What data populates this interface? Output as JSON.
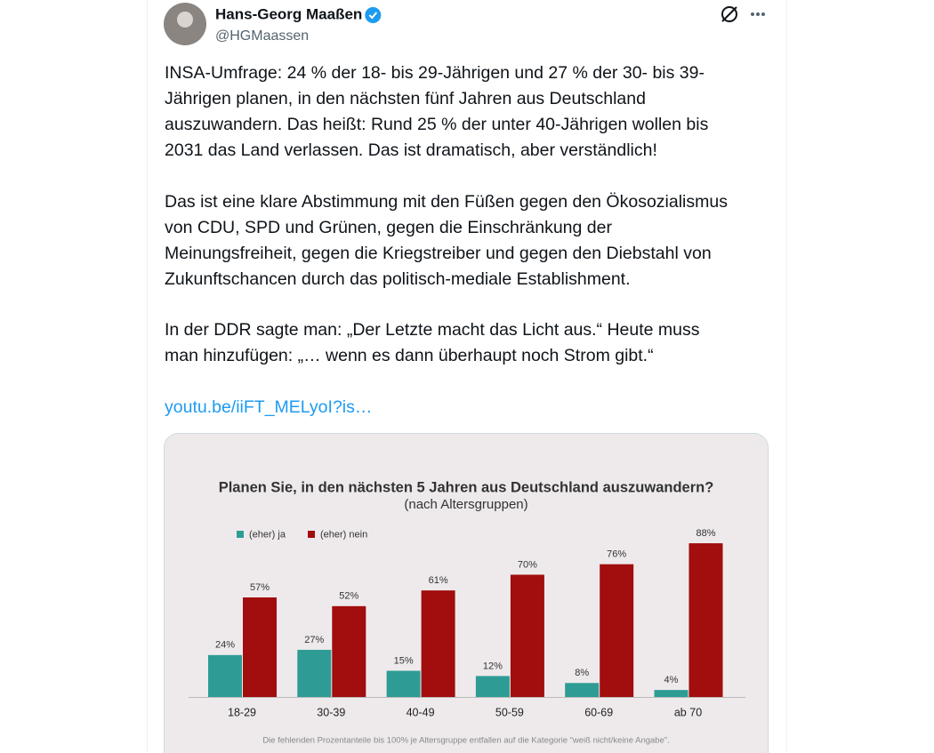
{
  "tweet": {
    "name": "Hans-Georg Maaßen",
    "handle": "@HGMaassen",
    "paragraphs": [
      [
        "INSA-Umfrage: 24 % der 18- bis 29-Jährigen und 27 % der 30- bis 39-",
        "Jährigen planen, in den nächsten fünf Jahren aus Deutschland",
        "auszuwandern. Das heißt: Rund 25 % der unter 40-Jährigen wollen bis",
        "2031 das Land verlassen. Das ist dramatisch, aber verständlich!"
      ],
      [
        "Das ist eine klare Abstimmung mit den Füßen gegen den Ökosozialismus",
        "von CDU, SPD und Grünen, gegen die Einschränkung der",
        "Meinungsfreiheit, gegen die Kriegstreiber und gegen den Diebstahl von",
        "Zukunftschancen durch das politisch-mediale Establishment."
      ],
      [
        "In der DDR sagte man: „Der Letzte macht das Licht aus.“ Heute muss",
        "man hinzufügen: „… wenn es dann überhaupt noch Strom gibt.“"
      ]
    ],
    "link": "youtu.be/iiFT_MELyoI?is…"
  },
  "chart_data": {
    "type": "bar",
    "title": "Planen Sie, in den nächsten 5 Jahren aus Deutschland auszuwandern?",
    "subtitle": "(nach Altersgruppen)",
    "categories": [
      "18-29",
      "30-39",
      "40-49",
      "50-59",
      "60-69",
      "ab 70"
    ],
    "series": [
      {
        "name": "(eher) ja",
        "color": "#2e9c94",
        "values": [
          24,
          27,
          15,
          12,
          8,
          4
        ],
        "value_labels": [
          "24%",
          "27%",
          "15%",
          "12%",
          "8%",
          "4%"
        ]
      },
      {
        "name": "(eher) nein",
        "color": "#a20d0d",
        "values": [
          57,
          52,
          61,
          70,
          76,
          88
        ],
        "value_labels": [
          "57%",
          "52%",
          "61%",
          "70%",
          "76%",
          "88%"
        ]
      }
    ],
    "note": "Die fehlenden Prozentanteile bis 100% je Altersgruppe entfallen auf die Kategorie “weiß nicht/keine Angabe”."
  }
}
